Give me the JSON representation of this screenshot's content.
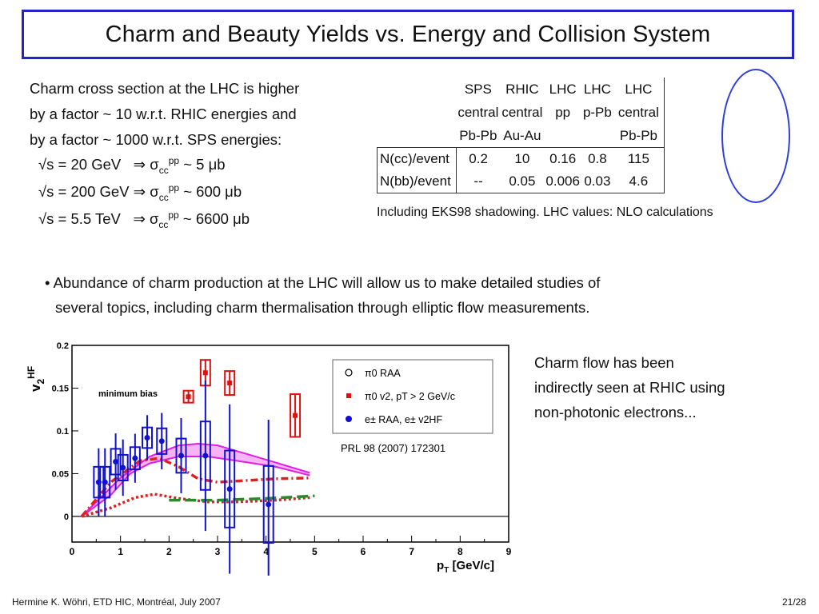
{
  "title": "Charm and Beauty Yields vs. Energy and Collision System",
  "intro_lines": [
    "Charm cross section at the LHC is higher",
    "by a factor ~ 10 w.r.t. RHIC energies and",
    "by a factor ~ 1000 w.r.t. SPS energies:"
  ],
  "equations": [
    {
      "sqrt_s": "√s = 20 GeV",
      "implies": "⇒ σ",
      "sub": "cc",
      "sup": "pp",
      "value": "~ 5 μb"
    },
    {
      "sqrt_s": "√s = 200 GeV",
      "implies": "⇒ σ",
      "sub": "cc",
      "sup": "pp",
      "value": "~ 600 μb"
    },
    {
      "sqrt_s": "√s = 5.5 TeV",
      "implies": "⇒ σ",
      "sub": "cc",
      "sup": "pp",
      "value": "~ 6600 μb"
    }
  ],
  "yield_table": {
    "headers": [
      [
        "SPS",
        "central",
        "Pb-Pb"
      ],
      [
        "RHIC",
        "central",
        "Au-Au"
      ],
      [
        "LHC",
        "pp",
        ""
      ],
      [
        "LHC",
        "p-Pb",
        ""
      ],
      [
        "LHC",
        "central",
        "Pb-Pb"
      ]
    ],
    "rows": [
      {
        "label": "N(cc)/event",
        "values": [
          "0.2",
          "10",
          "0.16",
          "0.8",
          "115"
        ]
      },
      {
        "label": "N(bb)/event",
        "values": [
          "--",
          "0.05",
          "0.006",
          "0.03",
          "4.6"
        ]
      }
    ],
    "note": "Including EKS98 shadowing. LHC values: NLO calculations"
  },
  "bullet_lines": [
    "• Abundance of charm production at the LHC will allow us to make detailed studies of",
    "several topics, including charm thermalisation through elliptic flow measurements."
  ],
  "flow_text_lines": [
    "Charm flow has been",
    "indirectly seen at RHIC using",
    "non-photonic electrons..."
  ],
  "chart_data": {
    "type": "scatter",
    "ylabel": "v2HF",
    "xlabel": "pT [GeV/c]",
    "xlim": [
      0,
      9
    ],
    "ylim": [
      -0.03,
      0.2
    ],
    "x_ticks": [
      "0",
      "1",
      "2",
      "3",
      "4",
      "5",
      "6",
      "7",
      "8",
      "9"
    ],
    "y_ticks": [
      "0",
      "0.05",
      "0.1",
      "0.15",
      "0.2"
    ],
    "annotation": "minimum bias",
    "reference": "PRL 98 (2007) 172301",
    "legend": [
      {
        "label": "π0 RAA",
        "marker": "open-circle"
      },
      {
        "label": "π0 v2, pT > 2 GeV/c",
        "marker": "red-square"
      },
      {
        "label": "e± RAA, e± v2HF",
        "marker": "blue-circle"
      }
    ],
    "series": [
      {
        "name": "π0 v2, pT > 2 GeV/c",
        "color": "#e01010",
        "points": [
          {
            "x": 2.4,
            "y": 0.14,
            "err": 0.007
          },
          {
            "x": 2.75,
            "y": 0.168,
            "err": 0.015
          },
          {
            "x": 3.25,
            "y": 0.156,
            "err": 0.014
          },
          {
            "x": 4.6,
            "y": 0.118,
            "err": 0.025
          }
        ]
      },
      {
        "name": "e± RAA, e± v2HF",
        "color": "#1010d0",
        "points": [
          {
            "x": 0.55,
            "y": 0.04,
            "err": 0.018
          },
          {
            "x": 0.68,
            "y": 0.04,
            "err": 0.018
          },
          {
            "x": 0.9,
            "y": 0.064,
            "err": 0.015
          },
          {
            "x": 1.05,
            "y": 0.057,
            "err": 0.015
          },
          {
            "x": 1.3,
            "y": 0.068,
            "err": 0.013
          },
          {
            "x": 1.55,
            "y": 0.092,
            "err": 0.012
          },
          {
            "x": 1.85,
            "y": 0.088,
            "err": 0.015
          },
          {
            "x": 2.25,
            "y": 0.071,
            "err": 0.02
          },
          {
            "x": 2.75,
            "y": 0.071,
            "err": 0.04
          },
          {
            "x": 3.25,
            "y": 0.032,
            "err": 0.045
          },
          {
            "x": 4.05,
            "y": 0.014,
            "err": 0.045
          }
        ]
      }
    ],
    "curves": [
      {
        "style": "magenta band upper",
        "color": "#e020e0",
        "x": [
          0.2,
          1,
          1.6,
          2.2,
          2.6,
          3,
          3.6,
          4.2,
          4.9
        ],
        "y": [
          0,
          0.045,
          0.07,
          0.083,
          0.085,
          0.083,
          0.073,
          0.063,
          0.051
        ]
      },
      {
        "style": "magenta band lower",
        "color": "#e020e0",
        "x": [
          0.2,
          0.8,
          1.2,
          1.6,
          2.2,
          2.8,
          3.4,
          4.2,
          4.9
        ],
        "y": [
          0,
          0.025,
          0.05,
          0.062,
          0.07,
          0.07,
          0.065,
          0.058,
          0.048
        ]
      },
      {
        "style": "red dash-dot",
        "color": "#e02020",
        "x": [
          0.2,
          0.8,
          1.4,
          1.8,
          2.2,
          2.6,
          3,
          3.6,
          4.2,
          4.9
        ],
        "y": [
          0,
          0.04,
          0.065,
          0.068,
          0.058,
          0.044,
          0.04,
          0.042,
          0.044,
          0.045
        ]
      },
      {
        "style": "red dotted",
        "color": "#e02020",
        "x": [
          0.2,
          0.8,
          1.3,
          1.7,
          2.2,
          2.8,
          3.4,
          4.2,
          4.9
        ],
        "y": [
          0,
          0.01,
          0.022,
          0.026,
          0.021,
          0.017,
          0.017,
          0.019,
          0.022
        ]
      },
      {
        "style": "green dashed",
        "color": "#2a8a2a",
        "x": [
          2,
          3,
          4,
          5
        ],
        "y": [
          0.019,
          0.019,
          0.021,
          0.024
        ]
      }
    ]
  },
  "footer": {
    "left": "Hermine K. Wöhri, ETD HIC, Montréal, July 2007",
    "right": "21/28"
  }
}
